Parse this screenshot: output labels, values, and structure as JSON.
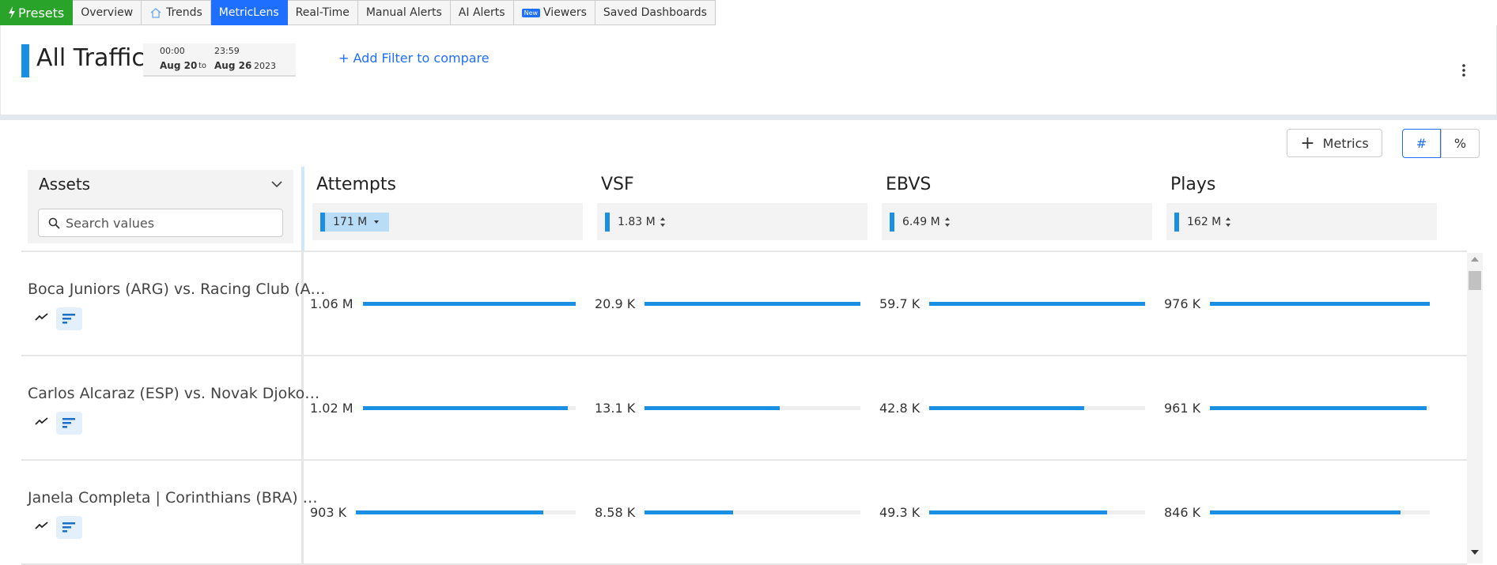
{
  "tabs": [
    {
      "label": "Presets"
    },
    {
      "label": "Overview"
    },
    {
      "label": "Trends"
    },
    {
      "label": "MetricLens"
    },
    {
      "label": "Real-Time"
    },
    {
      "label": "Manual Alerts"
    },
    {
      "label": "AI Alerts"
    },
    {
      "label": "Viewers",
      "badge": "New"
    },
    {
      "label": "Saved Dashboards"
    }
  ],
  "header": {
    "title": "All Traffic",
    "range": {
      "start_time": "00:00",
      "start_date": "Aug 20",
      "to": "to",
      "end_time": "23:59",
      "end_date": "Aug 26",
      "year": "2023"
    },
    "add_filter": "+ Add Filter to compare"
  },
  "toolbar": {
    "metrics_button": "Metrics",
    "count_toggle": "#",
    "percent_toggle": "%"
  },
  "assets_panel": {
    "title": "Assets",
    "search_placeholder": "Search values"
  },
  "metrics": [
    {
      "name": "Attempts",
      "total": "171 M"
    },
    {
      "name": "VSF",
      "total": "1.83 M"
    },
    {
      "name": "EBVS",
      "total": "6.49 M"
    },
    {
      "name": "Plays",
      "total": "162 M"
    }
  ],
  "rows": [
    {
      "asset": "Boca Juniors (ARG) vs. Racing Club (A…",
      "cells": [
        {
          "value": 1060000,
          "label": "1.06 M"
        },
        {
          "value": 20900,
          "label": "20.9 K"
        },
        {
          "value": 59700,
          "label": "59.7 K"
        },
        {
          "value": 976000,
          "label": "976 K"
        }
      ]
    },
    {
      "asset": "Carlos Alcaraz (ESP) vs. Novak Djoko…",
      "cells": [
        {
          "value": 1020000,
          "label": "1.02 M"
        },
        {
          "value": 13100,
          "label": "13.1 K"
        },
        {
          "value": 42800,
          "label": "42.8 K"
        },
        {
          "value": 961000,
          "label": "961 K"
        }
      ]
    },
    {
      "asset": "Janela Completa | Corinthians (BRA) …",
      "cells": [
        {
          "value": 903000,
          "label": "903 K"
        },
        {
          "value": 8580,
          "label": "8.58 K"
        },
        {
          "value": 49300,
          "label": "49.3 K"
        },
        {
          "value": 846000,
          "label": "846 K"
        }
      ]
    }
  ]
}
